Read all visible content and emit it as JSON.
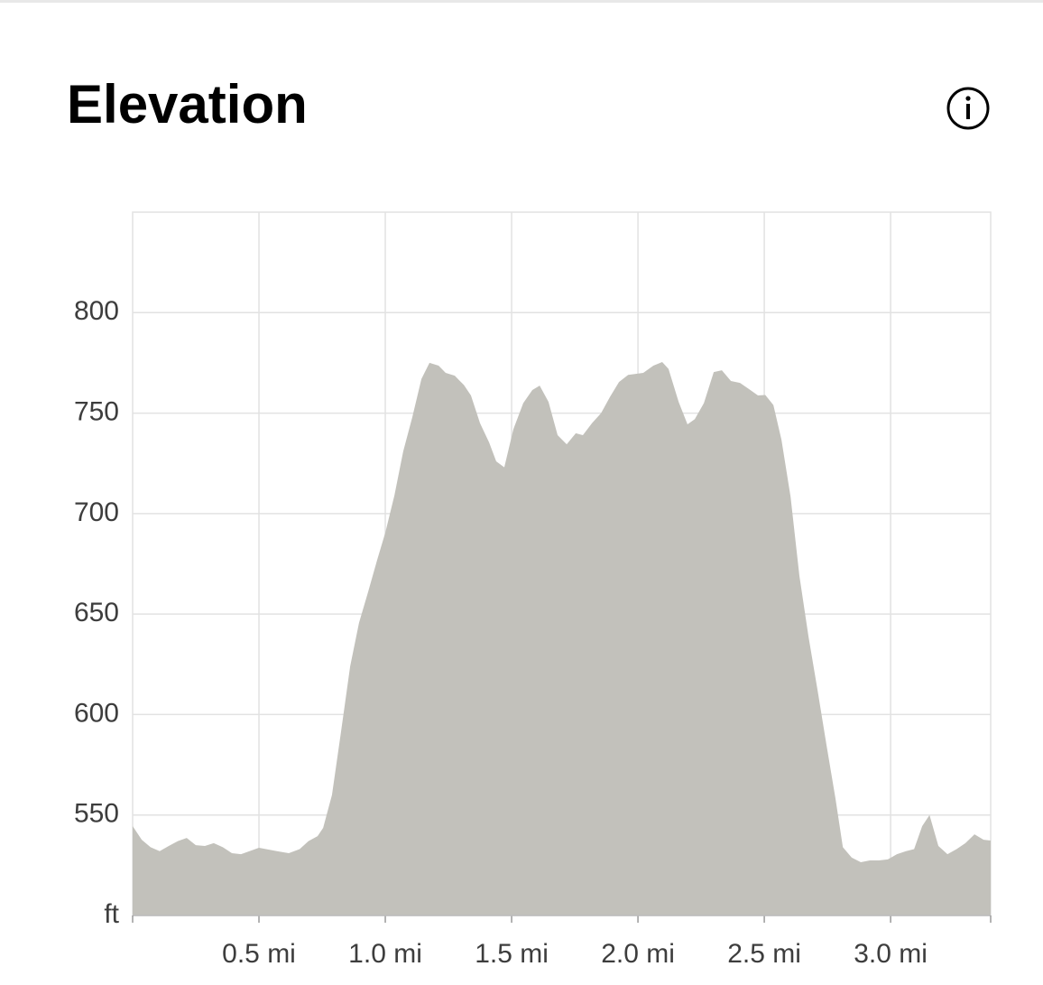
{
  "chart_data": {
    "type": "area",
    "title": "Elevation",
    "color": "#c2c1bb",
    "grid": true,
    "x": [
      0,
      0.036,
      0.071,
      0.107,
      0.143,
      0.179,
      0.214,
      0.25,
      0.286,
      0.321,
      0.357,
      0.393,
      0.429,
      0.5,
      0.571,
      0.618,
      0.661,
      0.696,
      0.732,
      0.754,
      0.789,
      0.825,
      0.861,
      0.896,
      0.932,
      0.968,
      1.0,
      1.036,
      1.071,
      1.107,
      1.143,
      1.175,
      1.211,
      1.239,
      1.275,
      1.311,
      1.339,
      1.375,
      1.411,
      1.439,
      1.471,
      1.507,
      1.546,
      1.582,
      1.611,
      1.646,
      1.682,
      1.718,
      1.754,
      1.782,
      1.818,
      1.854,
      1.889,
      1.925,
      1.961,
      2.021,
      2.061,
      2.096,
      2.121,
      2.161,
      2.196,
      2.225,
      2.261,
      2.3,
      2.332,
      2.368,
      2.404,
      2.439,
      2.475,
      2.504,
      2.536,
      2.568,
      2.604,
      2.639,
      2.675,
      2.711,
      2.746,
      2.782,
      2.811,
      2.846,
      2.882,
      2.918,
      2.954,
      2.989,
      3.025,
      3.061,
      3.093,
      3.125,
      3.154,
      3.189,
      3.225,
      3.261,
      3.296,
      3.332,
      3.368,
      3.396
    ],
    "values": [
      544.5,
      537.7,
      534,
      532,
      534.6,
      537,
      538.6,
      535,
      534.6,
      536,
      534,
      531,
      530.5,
      533.7,
      532,
      531,
      533,
      537,
      539.5,
      543.6,
      560,
      591.6,
      624,
      645.6,
      661,
      677,
      690.5,
      709,
      731,
      748,
      767,
      775,
      773.6,
      770,
      768.6,
      764,
      758.8,
      745,
      735.4,
      726,
      723,
      742,
      755,
      761.5,
      763.7,
      755.6,
      739,
      734.5,
      740,
      739,
      745,
      750,
      758,
      765.5,
      769,
      770,
      773.6,
      775.4,
      772,
      755.6,
      744.4,
      747,
      755,
      770.4,
      771.3,
      766,
      765,
      762,
      758.8,
      759,
      754,
      736.7,
      708.4,
      669,
      638.8,
      612,
      585,
      558,
      534,
      528.8,
      526.5,
      527.4,
      527.4,
      527.9,
      530.5,
      532,
      533,
      544.5,
      550,
      534.6,
      530.5,
      533,
      536,
      540.4,
      537.7,
      537.3
    ],
    "xlim": [
      0,
      3.396
    ],
    "ylim": [
      500,
      850
    ],
    "xticks": [
      {
        "value": 0.5,
        "label": "0.5 mi"
      },
      {
        "value": 1.0,
        "label": "1.0 mi"
      },
      {
        "value": 1.5,
        "label": "1.5 mi"
      },
      {
        "value": 2.0,
        "label": "2.0 mi"
      },
      {
        "value": 2.5,
        "label": "2.5 mi"
      },
      {
        "value": 3.0,
        "label": "3.0 mi"
      }
    ],
    "yticks": [
      {
        "value": 500,
        "label": "ft"
      },
      550,
      600,
      650,
      700,
      750,
      800
    ]
  }
}
